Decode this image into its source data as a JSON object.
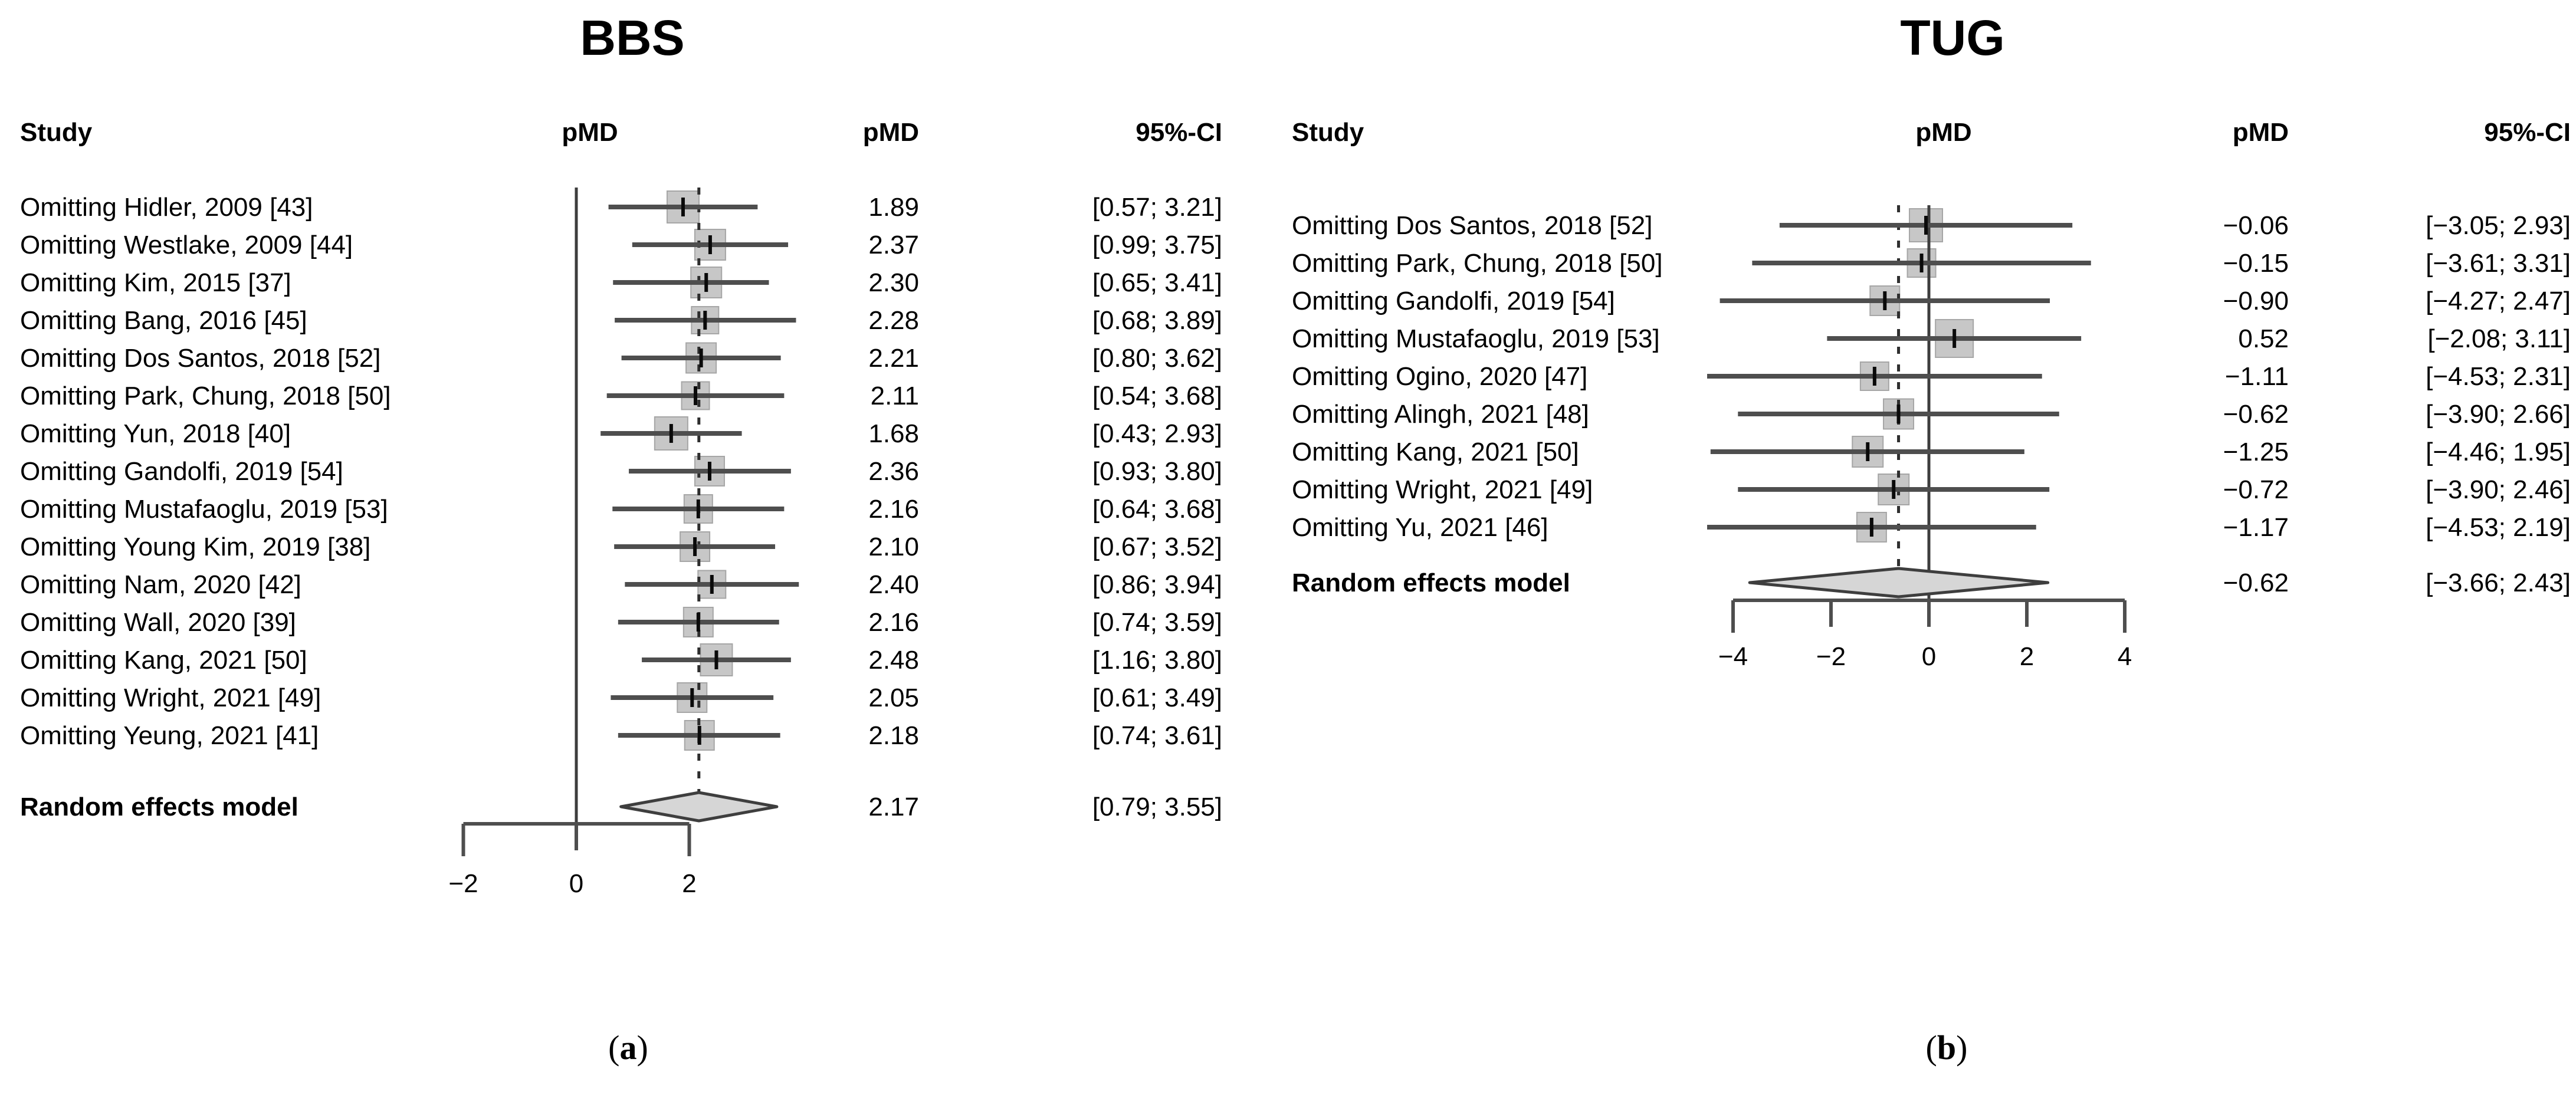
{
  "colors": {
    "background": "#ffffff",
    "text": "#000000",
    "ci_line": "#4e4e4e",
    "axis": "#4e4e4e",
    "square_fill": "#c7c7c7",
    "square_border": "#a6a6a6",
    "estimate_tick": "#0a0a0a",
    "zero_line": "#3d3d3d",
    "pooled_dash": "#2e2e2e",
    "diamond_fill": "#d6d6d6",
    "diamond_border": "#3e3e3e"
  },
  "chart_data": [
    {
      "type": "scatter",
      "subtype": "forest-plot-leave-one-out",
      "title": "BBS",
      "columns": {
        "study": "Study",
        "plot": "pMD",
        "effect": "pMD",
        "ci": "95%-CI"
      },
      "x_range": [
        -2,
        2
      ],
      "x_ticks": [
        {
          "v": -2,
          "label": "−2"
        },
        {
          "v": 0,
          "label": "0"
        },
        {
          "v": 2,
          "label": "2"
        }
      ],
      "reference_line_x": 0,
      "pooled_line_x": 2.17,
      "grid": false,
      "studies": [
        {
          "label": "Omitting Hidler, 2009 [43]",
          "pMD": 1.89,
          "ci_low": 0.57,
          "ci_high": 3.21,
          "pMD_text": "1.89",
          "ci_text": "[0.57; 3.21]",
          "weight": 54
        },
        {
          "label": "Omitting Westlake, 2009 [44]",
          "pMD": 2.37,
          "ci_low": 0.99,
          "ci_high": 3.75,
          "pMD_text": "2.37",
          "ci_text": "[0.99; 3.75]",
          "weight": 52
        },
        {
          "label": "Omitting Kim, 2015 [37]",
          "pMD": 2.3,
          "ci_low": 0.65,
          "ci_high": 3.41,
          "pMD_text": "2.30",
          "ci_text": "[0.65; 3.41]",
          "weight": 52
        },
        {
          "label": "Omitting Bang, 2016 [45]",
          "pMD": 2.28,
          "ci_low": 0.68,
          "ci_high": 3.89,
          "pMD_text": "2.28",
          "ci_text": "[0.68; 3.89]",
          "weight": 46
        },
        {
          "label": "Omitting Dos Santos, 2018 [52]",
          "pMD": 2.21,
          "ci_low": 0.8,
          "ci_high": 3.62,
          "pMD_text": "2.21",
          "ci_text": "[0.80; 3.62]",
          "weight": 51
        },
        {
          "label": "Omitting Park, Chung, 2018 [50]",
          "pMD": 2.11,
          "ci_low": 0.54,
          "ci_high": 3.68,
          "pMD_text": "2.11",
          "ci_text": "[0.54; 3.68]",
          "weight": 47
        },
        {
          "label": "Omitting Yun, 2018 [40]",
          "pMD": 1.68,
          "ci_low": 0.43,
          "ci_high": 2.93,
          "pMD_text": "1.68",
          "ci_text": "[0.43; 2.93]",
          "weight": 56
        },
        {
          "label": "Omitting Gandolfi, 2019 [54]",
          "pMD": 2.36,
          "ci_low": 0.93,
          "ci_high": 3.8,
          "pMD_text": "2.36",
          "ci_text": "[0.93; 3.80]",
          "weight": 50
        },
        {
          "label": "Omitting Mustafaoglu, 2019 [53]",
          "pMD": 2.16,
          "ci_low": 0.64,
          "ci_high": 3.68,
          "pMD_text": "2.16",
          "ci_text": "[0.64; 3.68]",
          "weight": 48
        },
        {
          "label": "Omitting Young Kim, 2019 [38]",
          "pMD": 2.1,
          "ci_low": 0.67,
          "ci_high": 3.52,
          "pMD_text": "2.10",
          "ci_text": "[0.67; 3.52]",
          "weight": 50
        },
        {
          "label": "Omitting Nam, 2020 [42]",
          "pMD": 2.4,
          "ci_low": 0.86,
          "ci_high": 3.94,
          "pMD_text": "2.40",
          "ci_text": "[0.86; 3.94]",
          "weight": 47
        },
        {
          "label": "Omitting Wall, 2020 [39]",
          "pMD": 2.16,
          "ci_low": 0.74,
          "ci_high": 3.59,
          "pMD_text": "2.16",
          "ci_text": "[0.74; 3.59]",
          "weight": 50
        },
        {
          "label": "Omitting Kang, 2021 [50]",
          "pMD": 2.48,
          "ci_low": 1.16,
          "ci_high": 3.8,
          "pMD_text": "2.48",
          "ci_text": "[1.16; 3.80]",
          "weight": 54
        },
        {
          "label": "Omitting Wright, 2021 [49]",
          "pMD": 2.05,
          "ci_low": 0.61,
          "ci_high": 3.49,
          "pMD_text": "2.05",
          "ci_text": "[0.61; 3.49]",
          "weight": 50
        },
        {
          "label": "Omitting Yeung, 2021 [41]",
          "pMD": 2.18,
          "ci_low": 0.74,
          "ci_high": 3.61,
          "pMD_text": "2.18",
          "ci_text": "[0.74; 3.61]",
          "weight": 50
        }
      ],
      "summary": {
        "label": "Random effects model",
        "pMD": 2.17,
        "ci_low": 0.79,
        "ci_high": 3.55,
        "pMD_text": "2.17",
        "ci_text": "[0.79; 3.55]"
      },
      "caption": {
        "open": "(",
        "letter": "a",
        "close": ")"
      }
    },
    {
      "type": "scatter",
      "subtype": "forest-plot-leave-one-out",
      "title": "TUG",
      "columns": {
        "study": "Study",
        "plot": "pMD",
        "effect": "pMD",
        "ci": "95%-CI"
      },
      "x_range": [
        -4,
        4
      ],
      "x_ticks": [
        {
          "v": -4,
          "label": "−4"
        },
        {
          "v": -2,
          "label": "−2"
        },
        {
          "v": 0,
          "label": "0"
        },
        {
          "v": 2,
          "label": "2"
        },
        {
          "v": 4,
          "label": "4"
        }
      ],
      "reference_line_x": 0,
      "pooled_line_x": -0.62,
      "grid": false,
      "studies": [
        {
          "label": "Omitting Dos Santos, 2018 [52]",
          "pMD": -0.06,
          "ci_low": -3.05,
          "ci_high": 2.93,
          "pMD_text": "−0.06",
          "ci_text": "[−3.05; 2.93]",
          "weight": 56
        },
        {
          "label": "Omitting Park, Chung, 2018 [50]",
          "pMD": -0.15,
          "ci_low": -3.61,
          "ci_high": 3.31,
          "pMD_text": "−0.15",
          "ci_text": "[−3.61; 3.31]",
          "weight": 48
        },
        {
          "label": "Omitting Gandolfi, 2019 [54]",
          "pMD": -0.9,
          "ci_low": -4.27,
          "ci_high": 2.47,
          "pMD_text": "−0.90",
          "ci_text": "[−4.27; 2.47]",
          "weight": 50
        },
        {
          "label": "Omitting Mustafaoglu, 2019 [53]",
          "pMD": 0.52,
          "ci_low": -2.08,
          "ci_high": 3.11,
          "pMD_text": "0.52",
          "ci_text": "[−2.08; 3.11]",
          "weight": 64
        },
        {
          "label": "Omitting Ogino, 2020 [47]",
          "pMD": -1.11,
          "ci_low": -4.53,
          "ci_high": 2.31,
          "pMD_text": "−1.11",
          "ci_text": "[−4.53; 2.31]",
          "weight": 48
        },
        {
          "label": "Omitting Alingh, 2021 [48]",
          "pMD": -0.62,
          "ci_low": -3.9,
          "ci_high": 2.66,
          "pMD_text": "−0.62",
          "ci_text": "[−3.90; 2.66]",
          "weight": 51
        },
        {
          "label": "Omitting Kang, 2021 [50]",
          "pMD": -1.25,
          "ci_low": -4.46,
          "ci_high": 1.95,
          "pMD_text": "−1.25",
          "ci_text": "[−4.46; 1.95]",
          "weight": 52
        },
        {
          "label": "Omitting Wright, 2021 [49]",
          "pMD": -0.72,
          "ci_low": -3.9,
          "ci_high": 2.46,
          "pMD_text": "−0.72",
          "ci_text": "[−3.90; 2.46]",
          "weight": 52
        },
        {
          "label": "Omitting Yu, 2021 [46]",
          "pMD": -1.17,
          "ci_low": -4.53,
          "ci_high": 2.19,
          "pMD_text": "−1.17",
          "ci_text": "[−4.53; 2.19]",
          "weight": 50
        }
      ],
      "summary": {
        "label": "Random effects model",
        "pMD": -0.62,
        "ci_low": -3.66,
        "ci_high": 2.43,
        "pMD_text": "−0.62",
        "ci_text": "[−3.66; 2.43]"
      },
      "caption": {
        "open": "(",
        "letter": "b",
        "close": ")"
      }
    }
  ]
}
